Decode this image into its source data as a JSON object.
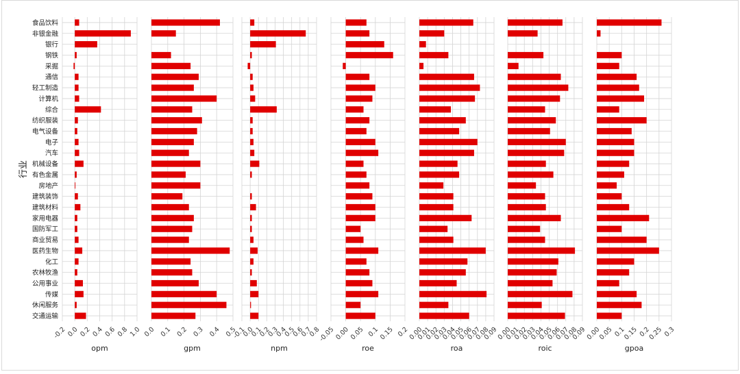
{
  "chart_data": {
    "type": "bar",
    "orientation": "horizontal",
    "ylabel": "行业",
    "bar_color": "#e00000",
    "grid": true,
    "categories": [
      "食品饮料",
      "非银金融",
      "银行",
      "钢铁",
      "采掘",
      "通信",
      "轻工制造",
      "计算机",
      "综合",
      "纺织服装",
      "电气设备",
      "电子",
      "汽车",
      "机械设备",
      "有色金属",
      "房地产",
      "建筑装饰",
      "建筑材料",
      "家用电器",
      "国防军工",
      "商业贸易",
      "医药生物",
      "化工",
      "农林牧渔",
      "公用事业",
      "传媒",
      "休闲服务",
      "交通运输"
    ],
    "panels": [
      {
        "xlabel": "opm",
        "xlim": [
          -0.2,
          1.0
        ],
        "ticks": [
          -0.2,
          0.0,
          0.2,
          0.4,
          0.6,
          0.8,
          1.0
        ],
        "tick_labels": [
          "-0.2",
          "0.0",
          "0.2",
          "0.4",
          "0.6",
          "0.8",
          "1.0"
        ],
        "values": [
          0.07,
          0.9,
          0.36,
          0.03,
          -0.02,
          0.06,
          0.06,
          0.07,
          0.42,
          0.05,
          0.04,
          0.06,
          0.07,
          0.14,
          0.03,
          0.01,
          0.05,
          0.09,
          0.04,
          0.04,
          0.06,
          0.12,
          0.06,
          0.04,
          0.13,
          0.14,
          0.03,
          0.18
        ]
      },
      {
        "xlabel": "gpm",
        "xlim": [
          0.0,
          0.5
        ],
        "ticks": [
          0.0,
          0.1,
          0.2,
          0.3,
          0.4,
          0.5
        ],
        "tick_labels": [
          "0.0",
          "0.1",
          "0.2",
          "0.3",
          "0.4",
          "0.5"
        ],
        "values": [
          0.42,
          0.15,
          0.0,
          0.12,
          0.24,
          0.29,
          0.26,
          0.4,
          0.25,
          0.31,
          0.28,
          0.26,
          0.23,
          0.3,
          0.21,
          0.3,
          0.19,
          0.23,
          0.26,
          0.25,
          0.23,
          0.48,
          0.24,
          0.25,
          0.29,
          0.4,
          0.46,
          0.27
        ]
      },
      {
        "xlabel": "npm",
        "xlim": [
          -0.1,
          0.8
        ],
        "ticks": [
          -0.1,
          0.0,
          0.1,
          0.2,
          0.3,
          0.4,
          0.5,
          0.6,
          0.7,
          0.8
        ],
        "tick_labels": [
          "-0.1",
          "0.0",
          "0.1",
          "0.2",
          "0.3",
          "0.4",
          "0.5",
          "0.6",
          "0.7",
          "0.8"
        ],
        "values": [
          0.05,
          0.67,
          0.31,
          0.02,
          -0.03,
          0.03,
          0.04,
          0.06,
          0.32,
          0.03,
          0.03,
          0.04,
          0.05,
          0.11,
          0.02,
          0.0,
          0.02,
          0.07,
          0.02,
          0.02,
          0.04,
          0.09,
          0.04,
          0.02,
          0.08,
          0.1,
          0.01,
          0.1
        ]
      },
      {
        "xlabel": "roe",
        "xlim": [
          -0.05,
          0.2
        ],
        "ticks": [
          -0.05,
          0.0,
          0.05,
          0.1,
          0.15,
          0.2
        ],
        "tick_labels": [
          "-0.05",
          "0.00",
          "0.05",
          "0.1",
          "0.15",
          "0.2"
        ],
        "values": [
          0.07,
          0.08,
          0.13,
          0.16,
          -0.01,
          0.08,
          0.1,
          0.09,
          0.06,
          0.08,
          0.07,
          0.1,
          0.11,
          0.06,
          0.07,
          0.08,
          0.09,
          0.1,
          0.1,
          0.05,
          0.06,
          0.11,
          0.07,
          0.08,
          0.09,
          0.11,
          0.05,
          0.1
        ]
      },
      {
        "xlabel": "roa",
        "xlim": [
          0.0,
          0.09
        ],
        "ticks": [
          0.0,
          0.01,
          0.02,
          0.03,
          0.04,
          0.05,
          0.06,
          0.07,
          0.08,
          0.09
        ],
        "tick_labels": [
          "0.00",
          "0.01",
          "0.02",
          "0.03",
          "0.04",
          "0.05",
          "0.06",
          "0.07",
          "0.08",
          "0.09"
        ],
        "values": [
          0.065,
          0.03,
          0.008,
          0.035,
          0.005,
          0.066,
          0.073,
          0.067,
          0.038,
          0.056,
          0.048,
          0.07,
          0.066,
          0.046,
          0.048,
          0.029,
          0.041,
          0.041,
          0.063,
          0.034,
          0.041,
          0.08,
          0.058,
          0.056,
          0.045,
          0.081,
          0.035,
          0.06
        ]
      },
      {
        "xlabel": "roic",
        "xlim": [
          0.0,
          0.09
        ],
        "ticks": [
          0.0,
          0.01,
          0.02,
          0.03,
          0.04,
          0.05,
          0.06,
          0.07,
          0.08,
          0.09
        ],
        "tick_labels": [
          "0.00",
          "0.01",
          "0.02",
          "0.03",
          "0.04",
          "0.05",
          "0.06",
          "0.07",
          "0.08",
          "0.09"
        ],
        "values": [
          0.066,
          0.036,
          0.0,
          0.043,
          0.013,
          0.064,
          0.073,
          0.063,
          0.045,
          0.058,
          0.051,
          0.07,
          0.068,
          0.046,
          0.055,
          0.034,
          0.045,
          0.046,
          0.064,
          0.039,
          0.045,
          0.081,
          0.061,
          0.059,
          0.054,
          0.078,
          0.041,
          0.069
        ]
      },
      {
        "xlabel": "gpoa",
        "xlim": [
          0.0,
          0.3
        ],
        "ticks": [
          0.0,
          0.05,
          0.1,
          0.15,
          0.2,
          0.25,
          0.3
        ],
        "tick_labels": [
          "0.00",
          "0.05",
          "0.1",
          "0.15",
          "0.2",
          "0.25",
          "0.3"
        ],
        "values": [
          0.26,
          0.015,
          0.0,
          0.1,
          0.09,
          0.16,
          0.17,
          0.19,
          0.09,
          0.2,
          0.14,
          0.15,
          0.15,
          0.13,
          0.11,
          0.08,
          0.1,
          0.13,
          0.21,
          0.1,
          0.2,
          0.25,
          0.15,
          0.13,
          0.09,
          0.16,
          0.18,
          0.1
        ]
      }
    ]
  }
}
